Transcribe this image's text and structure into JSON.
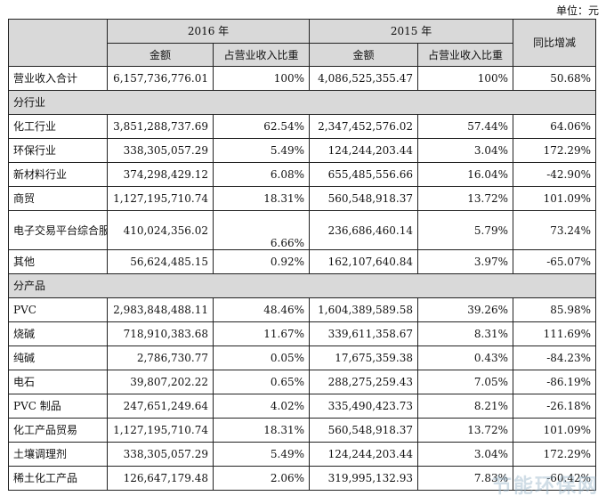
{
  "unit_label": "单位：元",
  "header": {
    "year_2016": "2016 年",
    "year_2015": "2015 年",
    "yoy": "同比增减",
    "amount": "金额",
    "ratio": "占营业收入比重"
  },
  "total": {
    "label": "营业收入合计",
    "a2016": "6,157,736,776.01",
    "r2016": "100%",
    "a2015": "4,086,525,355.47",
    "r2015": "100%",
    "yoy": "50.68%"
  },
  "section_industry": "分行业",
  "industry": [
    {
      "label": "化工行业",
      "a2016": "3,851,288,737.69",
      "r2016": "62.54%",
      "a2015": "2,347,452,576.02",
      "r2015": "57.44%",
      "yoy": "64.06%"
    },
    {
      "label": "环保行业",
      "a2016": "338,305,057.29",
      "r2016": "5.49%",
      "a2015": "124,244,203.44",
      "r2015": "3.04%",
      "yoy": "172.29%"
    },
    {
      "label": "新材料行业",
      "a2016": "374,298,429.12",
      "r2016": "6.08%",
      "a2015": "655,485,556.66",
      "r2015": "16.04%",
      "yoy": "-42.90%"
    },
    {
      "label": "商贸",
      "a2016": "1,127,195,710.74",
      "r2016": "18.31%",
      "a2015": "560,548,918.37",
      "r2015": "13.72%",
      "yoy": "101.09%"
    },
    {
      "label": "电子交易平台综合服务",
      "a2016": "410,024,356.02",
      "r2016": "6.66%",
      "a2015": "236,686,460.14",
      "r2015": "5.79%",
      "yoy": "73.24%"
    },
    {
      "label": "其他",
      "a2016": "56,624,485.15",
      "r2016": "0.92%",
      "a2015": "162,107,640.84",
      "r2015": "3.97%",
      "yoy": "-65.07%"
    }
  ],
  "section_product": "分产品",
  "product": [
    {
      "label": "PVC",
      "a2016": "2,983,848,488.11",
      "r2016": "48.46%",
      "a2015": "1,604,389,589.58",
      "r2015": "39.26%",
      "yoy": "85.98%"
    },
    {
      "label": "烧碱",
      "a2016": "718,910,383.68",
      "r2016": "11.67%",
      "a2015": "339,611,358.67",
      "r2015": "8.31%",
      "yoy": "111.69%"
    },
    {
      "label": "纯碱",
      "a2016": "2,786,730.77",
      "r2016": "0.05%",
      "a2015": "17,675,359.38",
      "r2015": "0.43%",
      "yoy": "-84.23%"
    },
    {
      "label": "电石",
      "a2016": "39,807,202.22",
      "r2016": "0.65%",
      "a2015": "288,275,259.43",
      "r2015": "7.05%",
      "yoy": "-86.19%"
    },
    {
      "label": "PVC 制品",
      "a2016": "247,651,249.64",
      "r2016": "4.02%",
      "a2015": "335,490,423.73",
      "r2015": "8.21%",
      "yoy": "-26.18%"
    },
    {
      "label": "化工产品贸易",
      "a2016": "1,127,195,710.74",
      "r2016": "18.31%",
      "a2015": "560,548,918.37",
      "r2015": "13.72%",
      "yoy": "101.09%"
    },
    {
      "label": "土壤调理剂",
      "a2016": "338,305,057.29",
      "r2016": "5.49%",
      "a2015": "124,244,203.44",
      "r2015": "3.04%",
      "yoy": "172.29%"
    },
    {
      "label": "稀土化工产品",
      "a2016": "126,647,179.48",
      "r2016": "2.06%",
      "a2015": "319,995,132.93",
      "r2015": "7.83%",
      "yoy": "-60.42%"
    }
  ],
  "watermark": "节能环保网"
}
